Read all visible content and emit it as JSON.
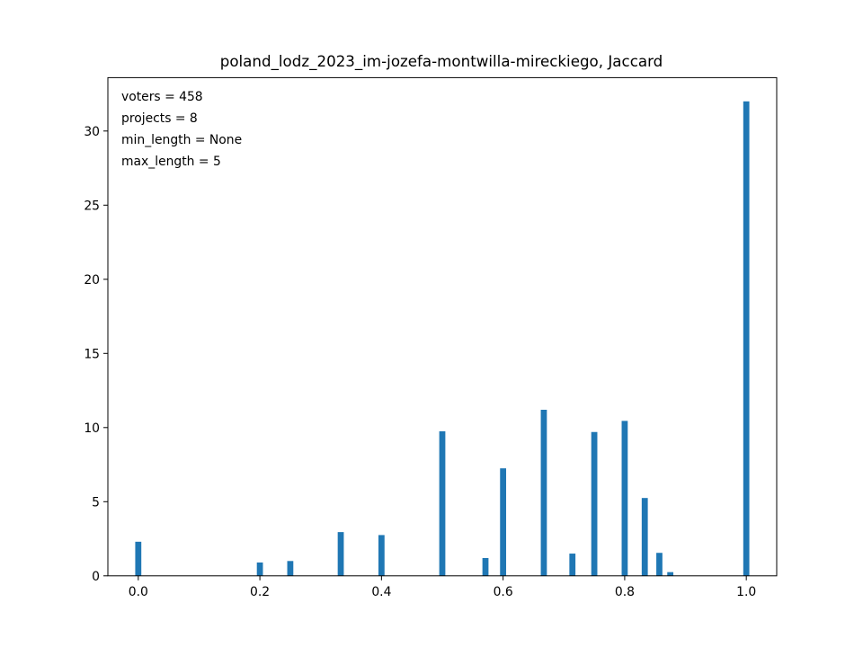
{
  "chart_data": {
    "type": "bar",
    "title": "poland_lodz_2023_im-jozefa-montwilla-mireckiego, Jaccard",
    "xlabel": "",
    "ylabel": "",
    "xlim": [
      -0.05,
      1.05
    ],
    "ylim": [
      0,
      33.6
    ],
    "bar_width": 0.01,
    "bar_color": "#1f77b4",
    "x_ticks": [
      0.0,
      0.2,
      0.4,
      0.6,
      0.8,
      1.0
    ],
    "x_tick_labels": [
      "0.0",
      "0.2",
      "0.4",
      "0.6",
      "0.8",
      "1.0"
    ],
    "y_ticks": [
      0,
      5,
      10,
      15,
      20,
      25,
      30
    ],
    "y_tick_labels": [
      "0",
      "5",
      "10",
      "15",
      "20",
      "25",
      "30"
    ],
    "annotations": [
      "voters = 458",
      "projects = 8",
      "min_length = None",
      "max_length = 5"
    ],
    "annotation_placement": "top-left",
    "grid": false,
    "x": [
      0.0,
      0.2,
      0.25,
      0.333,
      0.4,
      0.5,
      0.571,
      0.6,
      0.667,
      0.714,
      0.75,
      0.8,
      0.833,
      0.857,
      0.875,
      1.0
    ],
    "values": [
      2.3,
      0.9,
      1.0,
      2.95,
      2.75,
      9.75,
      1.2,
      7.25,
      11.2,
      1.5,
      9.7,
      10.45,
      5.25,
      1.55,
      0.25,
      32.0
    ]
  }
}
